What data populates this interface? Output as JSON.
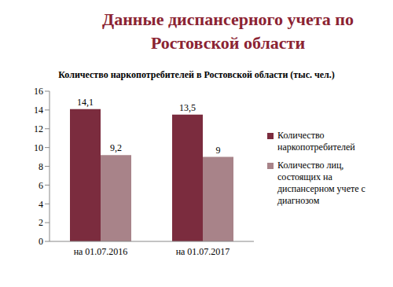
{
  "chart_data": {
    "type": "bar",
    "title": "Данные диспансерного учета по Ростовской области",
    "subtitle": "Количество наркопотребителей в Ростовской области (тыс. чел.)",
    "categories": [
      "на 01.07.2016",
      "на 01.07.2017"
    ],
    "series": [
      {
        "name": "Количество наркопотребителей",
        "color": "#7b2c3e",
        "values": [
          14.1,
          13.5
        ],
        "value_labels": [
          "14,1",
          "13,5"
        ]
      },
      {
        "name": "Количество лиц, состоящих на диспансерном учете с диагнозом",
        "color": "#a88389",
        "values": [
          9.2,
          9
        ],
        "value_labels": [
          "9,2",
          "9"
        ]
      }
    ],
    "ylim": [
      0,
      16
    ],
    "yticks": [
      0,
      2,
      4,
      6,
      8,
      10,
      12,
      14,
      16
    ],
    "grid": false,
    "legend": "right",
    "data_labels": true
  }
}
